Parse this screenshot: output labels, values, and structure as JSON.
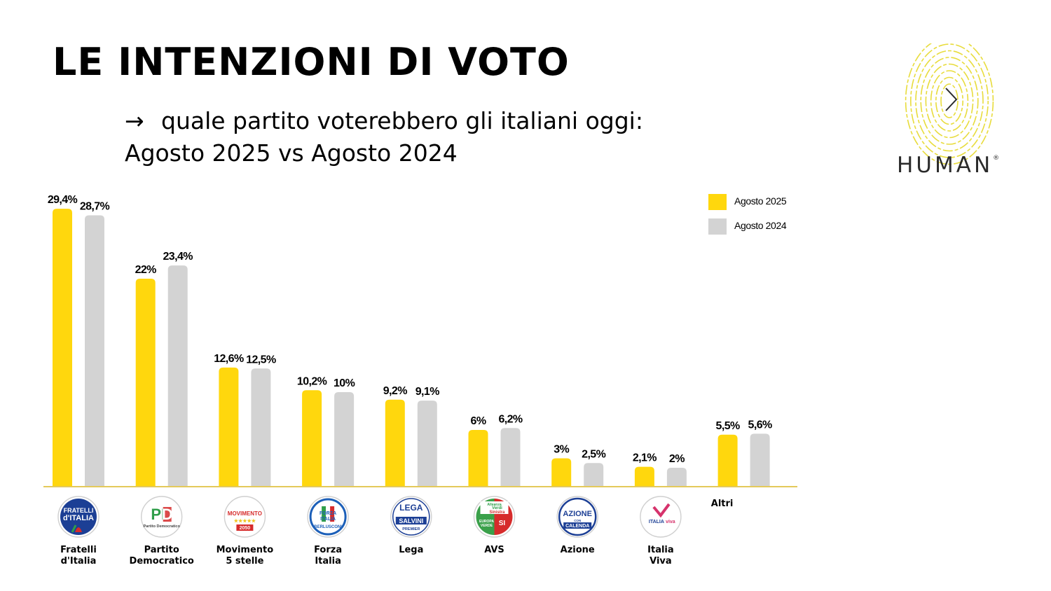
{
  "header": {
    "title": "LE INTENZIONI DI VOTO",
    "subtitle_arrow": "→",
    "subtitle_line1": "quale partito voterebbero gli italiani oggi:",
    "subtitle_line2": "Agosto 2025 vs Agosto 2024"
  },
  "brand": {
    "name": "HUMAN",
    "mark": "®",
    "logo_color": "#e8dc3c"
  },
  "colors": {
    "series_2025": "#ffd70d",
    "series_2024": "#d3d3d3",
    "axis": "#e4c95a"
  },
  "emblems": {
    "fdi": [
      "FRATELLI",
      "d'ITALIA"
    ],
    "pd": [
      "PD",
      "Partito Democratico"
    ],
    "m5s": [
      "MOVIMENTO",
      "★★★★★",
      "2050"
    ],
    "fi": [
      "FORZA",
      "ITALIA",
      "BERLUSCONI"
    ],
    "lega": [
      "LEGA",
      "SALVINI",
      "PREMIER"
    ],
    "avs": [
      "Alleanza",
      "Verdi",
      "Sinistra",
      "EUROPA",
      "VERDE",
      "SI"
    ],
    "azione": [
      "AZIONE",
      "CON",
      "CALENDA"
    ],
    "iv": [
      "ITALIA",
      "viva"
    ]
  },
  "chart_data": {
    "type": "bar",
    "categories": [
      [
        "Fratelli",
        "d'Italia"
      ],
      [
        "Partito",
        "Democratico"
      ],
      [
        "Movimento",
        "5 stelle"
      ],
      [
        "Forza",
        "Italia"
      ],
      [
        "Lega"
      ],
      [
        "AVS"
      ],
      [
        "Azione"
      ],
      [
        "Italia",
        "Viva"
      ],
      [
        "Altri"
      ]
    ],
    "logos": [
      "fdi",
      "pd",
      "m5s",
      "fi",
      "lega",
      "avs",
      "azione",
      "iv",
      ""
    ],
    "series": [
      {
        "name": "Agosto 2025",
        "color": "#ffd70d",
        "values": [
          29.4,
          22,
          12.6,
          10.2,
          9.2,
          6,
          3,
          2.1,
          5.5
        ],
        "labels": [
          "29,4%",
          "22%",
          "12,6%",
          "10,2%",
          "9,2%",
          "6%",
          "3%",
          "2,1%",
          "5,5%"
        ]
      },
      {
        "name": "Agosto 2024",
        "color": "#d3d3d3",
        "values": [
          28.7,
          23.4,
          12.5,
          10,
          9.1,
          6.2,
          2.5,
          2,
          5.6
        ],
        "labels": [
          "28,7%",
          "23,4%",
          "12,5%",
          "10%",
          "9,1%",
          "6,2%",
          "2,5%",
          "2%",
          "5,6%"
        ]
      }
    ],
    "ylim": [
      0,
      30
    ],
    "grid": false,
    "legend": "top-right"
  }
}
